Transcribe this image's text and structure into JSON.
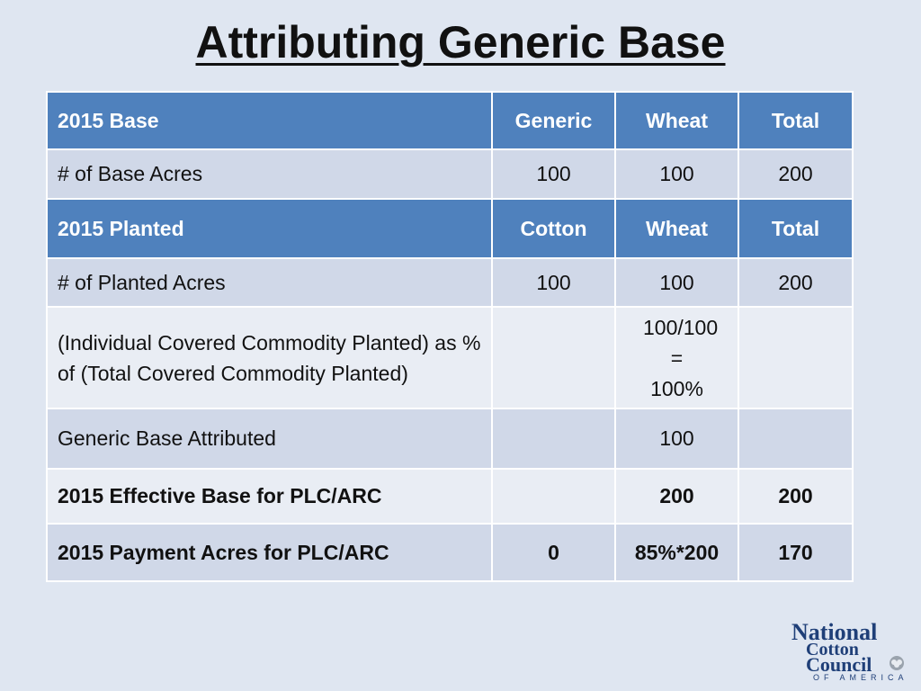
{
  "title": "Attributing Generic Base",
  "table": {
    "rows": [
      [
        "2015 Base",
        "Generic",
        "Wheat",
        "Total"
      ],
      [
        "# of Base Acres",
        "100",
        "100",
        "200"
      ],
      [
        "2015 Planted",
        "Cotton",
        "Wheat",
        "Total"
      ],
      [
        "# of Planted Acres",
        "100",
        "100",
        "200"
      ],
      [
        "(Individual Covered Commodity Planted) as % of (Total Covered Commodity Planted)",
        "",
        "100/100 = 100%",
        ""
      ],
      [
        "Generic Base Attributed",
        "",
        "100",
        ""
      ],
      [
        "2015 Effective Base for PLC/ARC",
        "",
        "200",
        "200"
      ],
      [
        "2015 Payment Acres for PLC/ARC",
        "0",
        "85%*200",
        "170"
      ]
    ]
  },
  "logo": {
    "line1": "National",
    "line2": "Cotton",
    "line3": "Council",
    "sub": "OF AMERICA"
  },
  "colors": {
    "background": "#dfe6f1",
    "header": "#4f81bd",
    "row_dark": "#d0d8e8",
    "row_light": "#e9edf4"
  }
}
